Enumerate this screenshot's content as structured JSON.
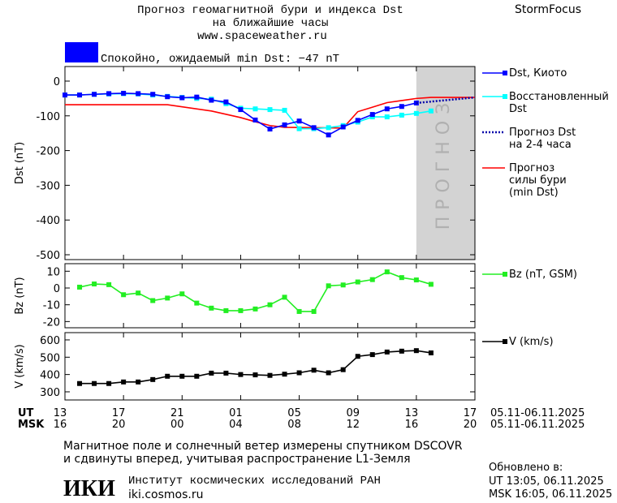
{
  "header": {
    "title_line1": "Прогноз геомагнитной бури и индекса Dst",
    "title_line2": "на ближайшие часы",
    "url": "www.spaceweather.ru",
    "brand": "StormFocus"
  },
  "status": {
    "text": "Спокойно, ожидаемый min Dst: −47 nT",
    "color": "#0000ff"
  },
  "chart_data": [
    {
      "type": "line",
      "ylabel": "Dst (nT)",
      "xlim": [
        0,
        28
      ],
      "ylim": [
        -514,
        42
      ],
      "yticks": [
        0,
        -100,
        -200,
        -300,
        -400,
        -500
      ],
      "forecast_region": {
        "x": [
          24,
          28
        ],
        "label": "ПРОГНОЗ",
        "color": "#d3d3d3"
      },
      "series": [
        {
          "name": "Прогноз\nсилы бури\n(min Dst)",
          "color": "#ff0000",
          "x": [
            0,
            7,
            10,
            12,
            13,
            14,
            15,
            19,
            20,
            21,
            22,
            23,
            24,
            25,
            28
          ],
          "values": [
            -68,
            -68,
            -86,
            -105,
            -117,
            -128,
            -133,
            -135,
            -88,
            -75,
            -62,
            -56,
            -50,
            -47,
            -47
          ]
        },
        {
          "name": "Восстановленный\nDst",
          "color": "#00ffff",
          "marker": "square",
          "x": [
            0,
            1,
            2,
            3,
            4,
            5,
            6,
            7,
            8,
            9,
            10,
            11,
            12,
            13,
            14,
            15,
            16,
            17,
            18,
            19,
            20,
            21,
            22,
            23,
            24,
            25
          ],
          "values": [
            -40,
            -40,
            -38,
            -37,
            -36,
            -37,
            -40,
            -44,
            -47,
            -50,
            -52,
            -65,
            -78,
            -80,
            -82,
            -84,
            -137,
            -137,
            -134,
            -128,
            -118,
            -103,
            -103,
            -98,
            -93,
            -86
          ]
        },
        {
          "name": "Dst, Киото",
          "color": "#0000ff",
          "marker": "square",
          "x": [
            0,
            1,
            2,
            3,
            4,
            5,
            6,
            7,
            8,
            9,
            10,
            11,
            12,
            13,
            14,
            15,
            16,
            17,
            18,
            19,
            20,
            21,
            22,
            23,
            24
          ],
          "values": [
            -40,
            -40,
            -38,
            -36,
            -35,
            -36,
            -38,
            -45,
            -48,
            -46,
            -55,
            -60,
            -82,
            -112,
            -138,
            -126,
            -115,
            -134,
            -155,
            -132,
            -113,
            -96,
            -80,
            -73,
            -63
          ]
        },
        {
          "name": "Прогноз Dst\nна 2-4 часа",
          "color": "#0000aa",
          "style": "dotted",
          "x": [
            24,
            28
          ],
          "values": [
            -63,
            -47
          ]
        }
      ],
      "legend_order": [
        2,
        1,
        3,
        0
      ]
    },
    {
      "type": "line",
      "ylabel": "Bz (nT)",
      "xlim": [
        0,
        28
      ],
      "ylim": [
        -23.7,
        14.5
      ],
      "yticks": [
        10,
        0,
        -10,
        -20
      ],
      "series": [
        {
          "name": "Bz (nT, GSM)",
          "color": "#22ee22",
          "marker": "square",
          "x": [
            1,
            2,
            3,
            4,
            5,
            6,
            7,
            8,
            9,
            10,
            11,
            12,
            13,
            14,
            15,
            16,
            17,
            18,
            19,
            20,
            21,
            22,
            23,
            24,
            25
          ],
          "values": [
            0.5,
            2.4,
            2,
            -4,
            -3,
            -7.5,
            -6,
            -3.5,
            -9,
            -12,
            -13.5,
            -13.5,
            -12.5,
            -10,
            -5.5,
            -14,
            -14,
            1.3,
            1.8,
            3.6,
            5,
            9.6,
            6.2,
            4.8,
            2.2
          ]
        }
      ],
      "legend_order": [
        0
      ]
    },
    {
      "type": "line",
      "ylabel": "V (km/s)",
      "xlim": [
        0,
        28
      ],
      "ylim": [
        253,
        642
      ],
      "yticks": [
        300,
        400,
        500,
        600
      ],
      "xlabel": "UT",
      "x2label": "MSK",
      "date_range_ut": "05.11-06.11.2025",
      "date_range_msk": "05.11-06.11.2025",
      "xticks": [
        {
          "value": 0,
          "label": "13"
        },
        {
          "value": 4,
          "label": "17"
        },
        {
          "value": 8,
          "label": "21"
        },
        {
          "value": 12,
          "label": "01"
        },
        {
          "value": 16,
          "label": "05"
        },
        {
          "value": 20,
          "label": "09"
        },
        {
          "value": 24,
          "label": "13"
        },
        {
          "value": 28,
          "label": "17"
        }
      ],
      "xticks_msk": [
        {
          "value": 0,
          "label": "16"
        },
        {
          "value": 4,
          "label": "20"
        },
        {
          "value": 8,
          "label": "00"
        },
        {
          "value": 12,
          "label": "04"
        },
        {
          "value": 16,
          "label": "08"
        },
        {
          "value": 20,
          "label": "12"
        },
        {
          "value": 24,
          "label": "16"
        },
        {
          "value": 28,
          "label": "20"
        }
      ],
      "series": [
        {
          "name": "V (km/s)",
          "color": "#000000",
          "marker": "square",
          "x": [
            1,
            2,
            3,
            4,
            5,
            6,
            7,
            8,
            9,
            10,
            11,
            12,
            13,
            14,
            15,
            16,
            17,
            18,
            19,
            20,
            21,
            22,
            23,
            24,
            25
          ],
          "values": [
            348,
            348,
            348,
            357,
            357,
            371,
            390,
            390,
            390,
            408,
            408,
            400,
            398,
            395,
            402,
            410,
            425,
            410,
            428,
            505,
            515,
            530,
            535,
            538,
            525
          ]
        }
      ],
      "legend_order": [
        0
      ]
    }
  ],
  "footer": {
    "note_line1": "Магнитное поле и солнечный ветер измерены спутником DSCOVR",
    "note_line2": "и сдвинуты вперед, учитывая распространение L1-Земля",
    "logo": "ИКИ",
    "institute": "Институт космических исследований РАН",
    "site": "iki.cosmos.ru",
    "updated": "Обновлено в:",
    "updated_ut": "UT  13:05, 06.11.2025",
    "updated_msk": "MSK 16:05, 06.11.2025"
  }
}
